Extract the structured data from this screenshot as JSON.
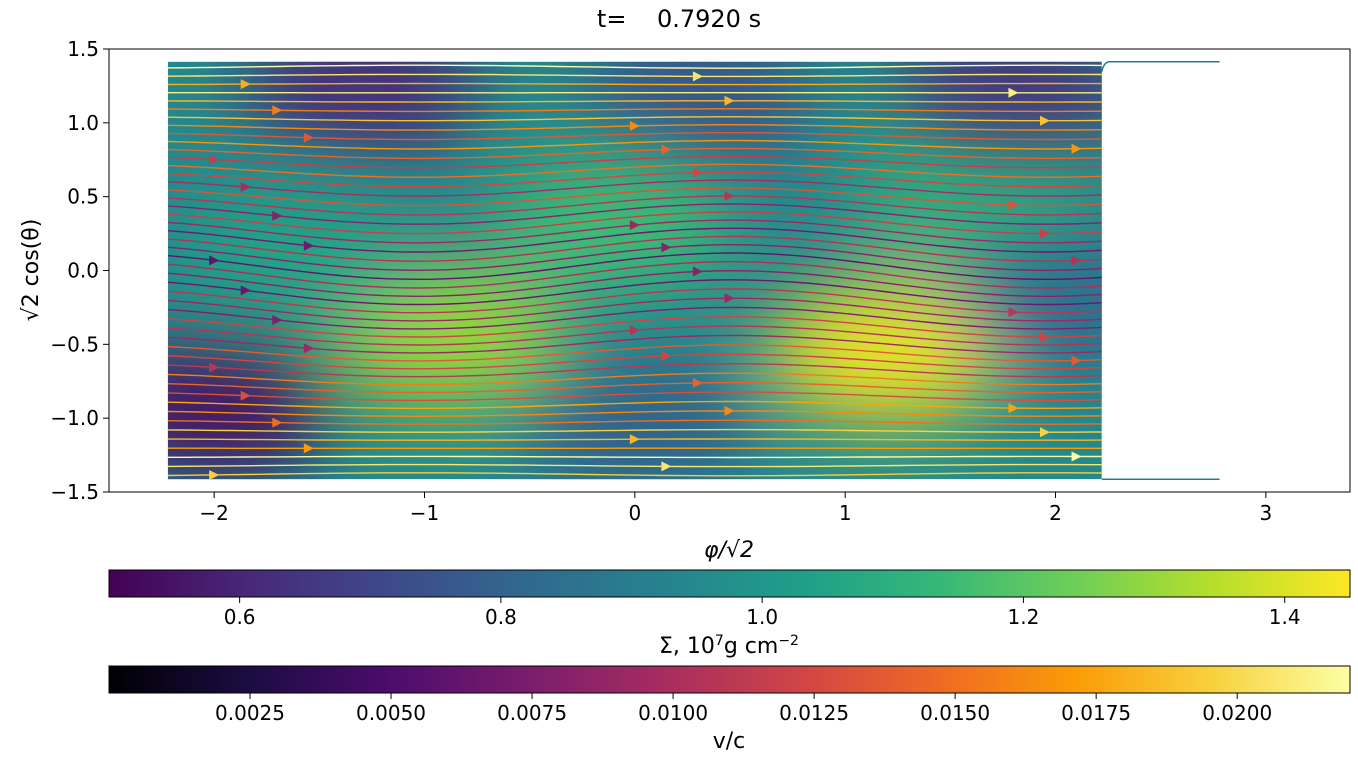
{
  "chart_data": {
    "type": "heatmap",
    "title": "t=    0.7920 s",
    "xlabel": "φ/√2",
    "ylabel": "√2 cos(θ)",
    "xlim": [
      -2.5,
      3.4
    ],
    "ylim": [
      -1.5,
      1.5
    ],
    "xticks": [
      -2,
      -1,
      0,
      1,
      2,
      3
    ],
    "xtick_labels": [
      "−2",
      "−1",
      "0",
      "1",
      "2",
      "3"
    ],
    "yticks": [
      1.5,
      1.0,
      0.5,
      0.0,
      -0.5,
      -1.0,
      -1.5
    ],
    "ytick_labels": [
      "1.5",
      "1.0",
      "0.5",
      "0.0",
      "−0.5",
      "−1.0",
      "−1.5"
    ],
    "field": {
      "name": "Σ",
      "units": "10^7 g cm^-2",
      "x_range": [
        -2.22,
        2.22
      ],
      "y_range": [
        -1.414,
        1.414
      ],
      "blobs": [
        {
          "x": -0.9,
          "y": -0.45,
          "value": 1.3
        },
        {
          "x": 1.2,
          "y": -0.55,
          "value": 1.42
        },
        {
          "x": -0.1,
          "y": 0.3,
          "value": 1.15
        },
        {
          "x": 1.6,
          "y": 0.5,
          "value": 1.1
        },
        {
          "x": -2.0,
          "y": -0.95,
          "value": 0.55
        },
        {
          "x": -1.3,
          "y": 1.25,
          "value": 0.62
        },
        {
          "x": 0.3,
          "y": 1.2,
          "value": 0.75
        },
        {
          "x": 1.8,
          "y": 1.2,
          "value": 0.65
        },
        {
          "x": 0.0,
          "y": -1.1,
          "value": 0.8
        },
        {
          "x": 2.1,
          "y": -0.2,
          "value": 0.85
        },
        {
          "x": -1.6,
          "y": 0.1,
          "value": 1.05
        }
      ],
      "background_value": 0.95
    },
    "streamlines": {
      "color_quantity": "v/c",
      "count": 48,
      "y_start": -1.38,
      "y_end": 1.38
    },
    "colorbars": [
      {
        "label": "Σ, 10⁷g cm⁻²",
        "label_main": "Σ, 10",
        "label_exp": "7",
        "label_mid": "g cm",
        "label_exp2": "−2",
        "colormap": "viridis",
        "range": [
          0.5,
          1.45
        ],
        "ticks": [
          0.6,
          0.8,
          1.0,
          1.2,
          1.4
        ],
        "tick_labels": [
          "0.6",
          "0.8",
          "1.0",
          "1.2",
          "1.4"
        ]
      },
      {
        "label": "v/c",
        "colormap": "inferno",
        "range": [
          0.0,
          0.022
        ],
        "ticks": [
          0.0025,
          0.005,
          0.0075,
          0.01,
          0.0125,
          0.015,
          0.0175,
          0.02
        ],
        "tick_labels": [
          "0.0025",
          "0.0050",
          "0.0075",
          "0.0100",
          "0.0125",
          "0.0150",
          "0.0175",
          "0.0200"
        ]
      }
    ]
  }
}
